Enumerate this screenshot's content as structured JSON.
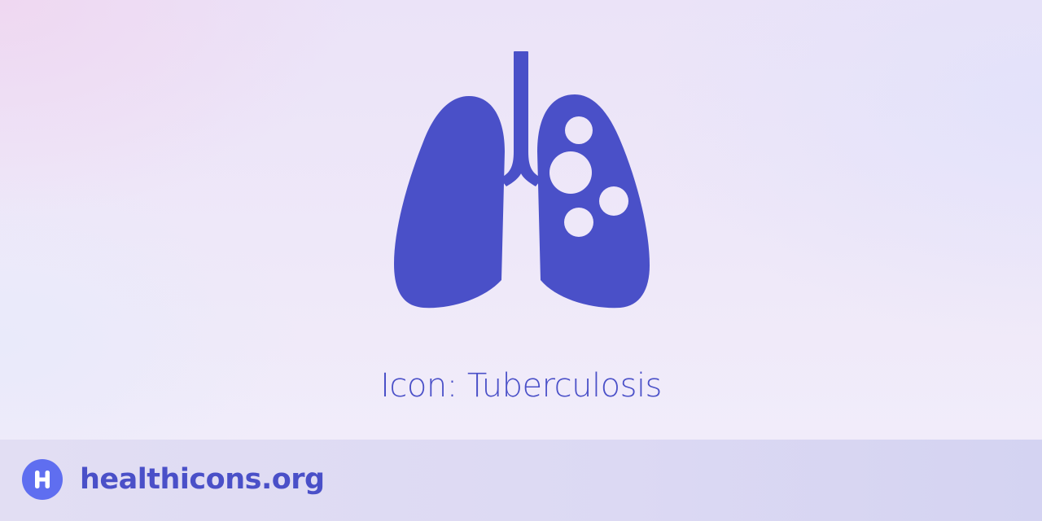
{
  "hero": {
    "icon_name": "tuberculosis-lungs-icon",
    "icon_color": "#4a50c8",
    "caption": "Icon: Tuberculosis"
  },
  "footer": {
    "logo_icon": "healthicons-logo-icon",
    "logo_color": "#5f6ef0",
    "site_name": "healthicons.org"
  }
}
